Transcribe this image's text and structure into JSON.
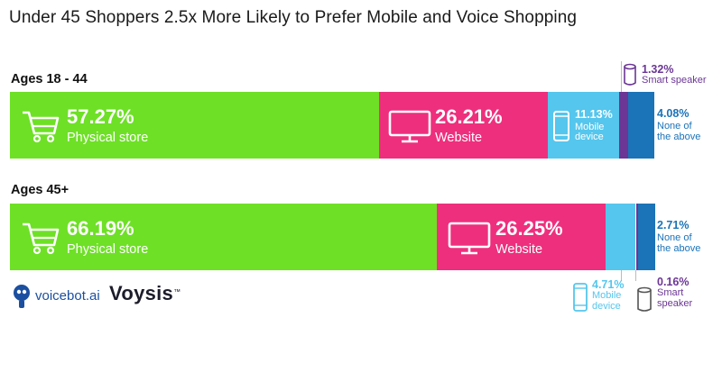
{
  "title": "Under 45 Shoppers 2.5x More Likely to Prefer Mobile and Voice Shopping",
  "colors": {
    "physical": "#6ee026",
    "website": "#ee2f7d",
    "mobile": "#55c6ed",
    "speaker": "#6b3695",
    "none": "#1b73b8",
    "text_dark": "#222222"
  },
  "groups": [
    {
      "label": "Ages 18 - 44",
      "segments": [
        {
          "key": "physical",
          "value": "57.27%",
          "label": "Physical store"
        },
        {
          "key": "website",
          "value": "26.21%",
          "label": "Website"
        },
        {
          "key": "mobile",
          "value": "11.13%",
          "label_lines": [
            "Mobile",
            "device"
          ]
        },
        {
          "key": "speaker",
          "value": "1.32%",
          "label": "Smart speaker"
        },
        {
          "key": "none",
          "value": "4.08%",
          "label_lines": [
            "None of",
            "the above"
          ]
        }
      ]
    },
    {
      "label": "Ages 45+",
      "segments": [
        {
          "key": "physical",
          "value": "66.19%",
          "label": "Physical store"
        },
        {
          "key": "website",
          "value": "26.25%",
          "label": "Website"
        },
        {
          "key": "mobile",
          "value": "4.71%",
          "label_lines": [
            "Mobile",
            "device"
          ]
        },
        {
          "key": "speaker",
          "value": "0.16%",
          "label_lines": [
            "Smart",
            "speaker"
          ]
        },
        {
          "key": "none",
          "value": "2.71%",
          "label_lines": [
            "None of",
            "the above"
          ]
        }
      ]
    }
  ],
  "chart_data": {
    "type": "bar",
    "stacked": true,
    "orientation": "horizontal",
    "title": "Under 45 Shoppers 2.5x More Likely to Prefer Mobile and Voice Shopping",
    "categories": [
      "Ages 18 - 44",
      "Ages 45+"
    ],
    "series": [
      {
        "name": "Physical store",
        "values": [
          57.27,
          66.19
        ]
      },
      {
        "name": "Website",
        "values": [
          26.21,
          26.25
        ]
      },
      {
        "name": "Mobile device",
        "values": [
          11.13,
          4.71
        ]
      },
      {
        "name": "Smart speaker",
        "values": [
          1.32,
          0.16
        ]
      },
      {
        "name": "None of the above",
        "values": [
          4.08,
          2.71
        ]
      }
    ],
    "unit": "%",
    "xlim": [
      0,
      100
    ]
  },
  "logos": {
    "voicebot": "voicebot.ai",
    "voysis": "Voysis",
    "voysis_tm": "™"
  }
}
